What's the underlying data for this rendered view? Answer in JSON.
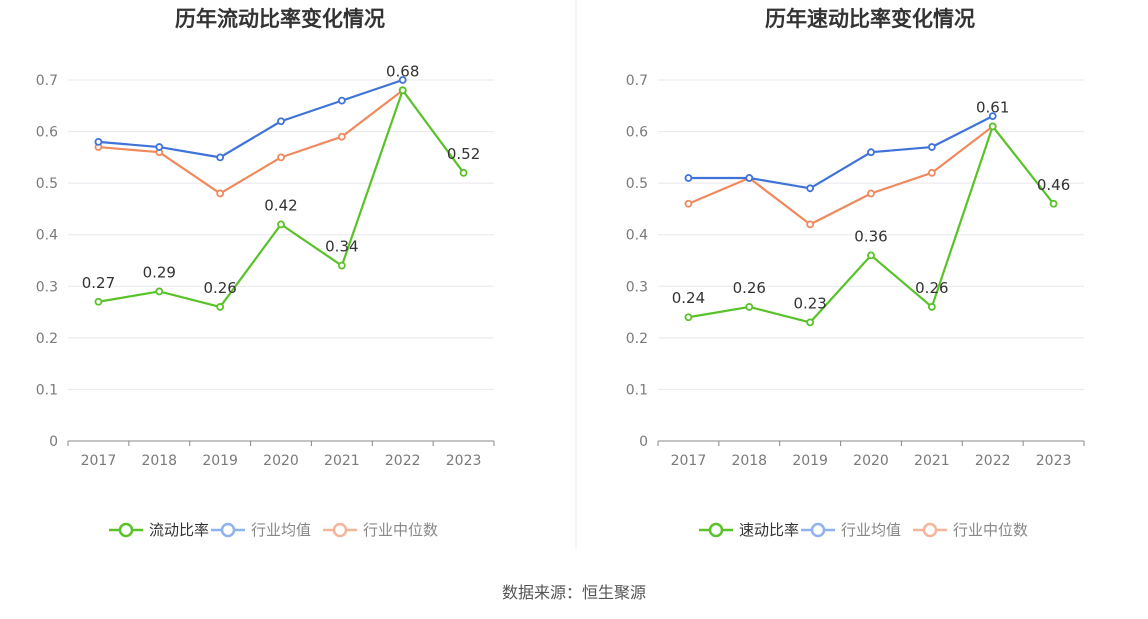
{
  "source": "数据来源：恒生聚源",
  "colors": {
    "main": "#5ac229",
    "avg": "#3f73d9",
    "median": "#f08a5d",
    "avg_legend": "#8fb2f0",
    "median_legend": "#f5b59a",
    "grid": "#e6e8ee",
    "axis": "#888888"
  },
  "chart_data": [
    {
      "type": "line",
      "title": "历年流动比率变化情况",
      "categories": [
        "2017",
        "2018",
        "2019",
        "2020",
        "2021",
        "2022",
        "2023"
      ],
      "ylim": [
        0,
        0.7
      ],
      "yticks": [
        "0",
        "0.1",
        "0.2",
        "0.3",
        "0.4",
        "0.5",
        "0.6",
        "0.7"
      ],
      "legend_position": "bottom",
      "grid": true,
      "series": [
        {
          "name": "流动比率",
          "values": [
            0.27,
            0.29,
            0.26,
            0.42,
            0.34,
            0.68,
            0.52
          ],
          "labels": [
            "0.27",
            "0.29",
            "0.26",
            "0.42",
            "0.34",
            "0.68",
            "0.52"
          ]
        },
        {
          "name": "行业均值",
          "values": [
            0.58,
            0.57,
            0.55,
            0.62,
            0.66,
            0.7,
            null
          ]
        },
        {
          "name": "行业中位数",
          "values": [
            0.57,
            0.56,
            0.48,
            0.55,
            0.59,
            0.68,
            null
          ]
        }
      ]
    },
    {
      "type": "line",
      "title": "历年速动比率变化情况",
      "categories": [
        "2017",
        "2018",
        "2019",
        "2020",
        "2021",
        "2022",
        "2023"
      ],
      "ylim": [
        0,
        0.7
      ],
      "yticks": [
        "0",
        "0.1",
        "0.2",
        "0.3",
        "0.4",
        "0.5",
        "0.6",
        "0.7"
      ],
      "legend_position": "bottom",
      "grid": true,
      "series": [
        {
          "name": "速动比率",
          "values": [
            0.24,
            0.26,
            0.23,
            0.36,
            0.26,
            0.61,
            0.46
          ],
          "labels": [
            "0.24",
            "0.26",
            "0.23",
            "0.36",
            "0.26",
            "0.61",
            "0.46"
          ]
        },
        {
          "name": "行业均值",
          "values": [
            0.51,
            0.51,
            0.49,
            0.56,
            0.57,
            0.63,
            null
          ]
        },
        {
          "name": "行业中位数",
          "values": [
            0.46,
            0.51,
            0.42,
            0.48,
            0.52,
            0.61,
            null
          ]
        }
      ]
    }
  ]
}
